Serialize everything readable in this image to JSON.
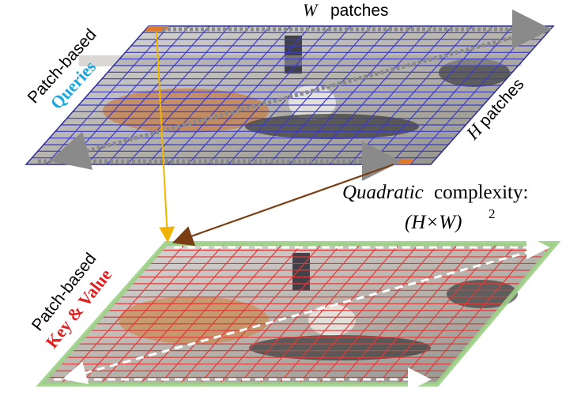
{
  "top_panel": {
    "label_line1": "Patch-based",
    "label_line2": "Queries",
    "w_symbol": "W",
    "w_text": "patches",
    "h_symbol": "H",
    "h_text": "patches",
    "grid_color": "#3b3bc8",
    "label_color": "#1aa7e0"
  },
  "bottom_panel": {
    "label_line1": "Patch-based",
    "label_line2": "Key & Value",
    "grid_color": "#e03a3a",
    "label_color": "#e02020",
    "outline_color": "#9ccf86"
  },
  "complexity": {
    "italic_word": "Quadratic",
    "rest": "complexity:",
    "formula": "(H×W)",
    "exponent": "2"
  },
  "colors": {
    "query_arrow": "#f0b400",
    "relation_arrow": "#7a3e12",
    "patch_highlight": "#e07a2a",
    "scan_arrow": "#8a8a8a"
  }
}
